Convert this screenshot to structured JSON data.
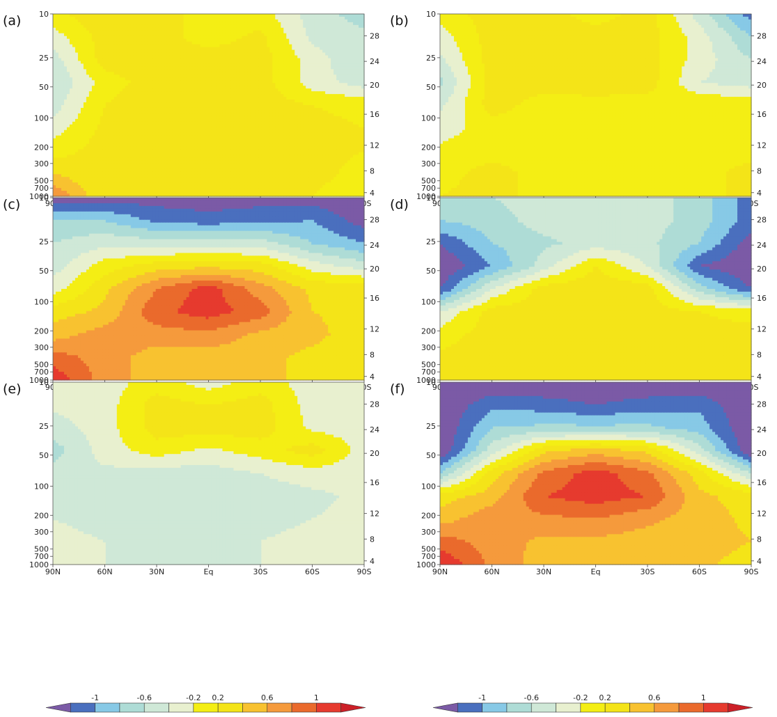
{
  "chart_data": {
    "type": "heatmap",
    "title": "",
    "x_ticks": [
      "90N",
      "60N",
      "30N",
      "Eq",
      "30S",
      "60S",
      "90S"
    ],
    "y_left_ticks": [
      "10",
      "25",
      "50",
      "100",
      "200",
      "300",
      "500",
      "700",
      "1000"
    ],
    "y_right_ticks": [
      "28",
      "24",
      "20",
      "16",
      "12",
      "8",
      "4"
    ],
    "colorbar_ticks": [
      "-1",
      "-0.6",
      "-0.2",
      "0.2",
      "0.6",
      "1"
    ],
    "levels": [
      -1.2,
      -1.0,
      -0.8,
      -0.6,
      -0.4,
      -0.2,
      0,
      0.2,
      0.4,
      0.6,
      0.8,
      1.0,
      1.2
    ],
    "colors": [
      "#7b5aa6",
      "#4a6fbe",
      "#87c9e6",
      "#aedcd6",
      "#cfe8d7",
      "#e8f0cf",
      "#f4ee14",
      "#f4e418",
      "#f8c230",
      "#f59a3c",
      "#ea6a2c",
      "#e63a2e",
      "#cc1f27"
    ],
    "panels": [
      {
        "label": "(a)",
        "grid": [
          [
            0.15,
            0.35,
            0.3,
            0.1,
            0.1,
            -0.3,
            -0.5
          ],
          [
            -0.1,
            0.3,
            0.3,
            0.1,
            0.25,
            -0.25,
            -0.35
          ],
          [
            -0.3,
            0.3,
            0.3,
            0.3,
            0.3,
            -0.1,
            -0.4
          ],
          [
            -0.4,
            0.1,
            0.3,
            0.3,
            0.3,
            -0.1,
            -0.3
          ],
          [
            -0.3,
            0.2,
            0.35,
            0.35,
            0.3,
            0.2,
            0.15
          ],
          [
            -0.1,
            0.25,
            0.35,
            0.35,
            0.3,
            0.25,
            0.2
          ],
          [
            0.1,
            0.3,
            0.3,
            0.3,
            0.3,
            0.25,
            0.2
          ],
          [
            0.4,
            0.2,
            0.25,
            0.3,
            0.3,
            0.25,
            0.15
          ],
          [
            0.8,
            0.2,
            0.25,
            0.3,
            0.3,
            0.2,
            0.1
          ]
        ]
      },
      {
        "label": "(b)",
        "grid": [
          [
            0.1,
            0.3,
            0.3,
            0.1,
            0.3,
            -0.3,
            -0.9
          ],
          [
            -0.1,
            0.3,
            0.3,
            0.3,
            0.3,
            -0.1,
            -0.6
          ],
          [
            -0.25,
            0.3,
            0.3,
            0.3,
            0.3,
            -0.1,
            -0.4
          ],
          [
            -0.45,
            0.3,
            0.3,
            0.35,
            0.3,
            -0.2,
            -0.3
          ],
          [
            -0.25,
            0.3,
            0.1,
            0.1,
            0.1,
            0.2,
            0.15
          ],
          [
            -0.1,
            0.1,
            0.1,
            0.1,
            0.1,
            0.1,
            0.1
          ],
          [
            0.05,
            0.1,
            0.1,
            0.1,
            0.1,
            0.1,
            0.1
          ],
          [
            0.1,
            0.3,
            0.1,
            0.1,
            0.1,
            0.1,
            0.3
          ],
          [
            0.2,
            0.3,
            0.1,
            0.1,
            0.1,
            0.1,
            0.3
          ]
        ]
      },
      {
        "label": "(c)",
        "grid": [
          [
            -1.1,
            -1.1,
            -1.1,
            -1.15,
            -1.1,
            -1.1,
            -1.2
          ],
          [
            -0.55,
            -0.6,
            -0.85,
            -0.9,
            -0.85,
            -0.8,
            -1.1
          ],
          [
            -0.4,
            -0.25,
            -0.3,
            -0.3,
            -0.3,
            -0.6,
            -0.8
          ],
          [
            -0.3,
            0.1,
            0.3,
            0.35,
            0.3,
            -0.1,
            -0.3
          ],
          [
            -0.1,
            0.35,
            0.8,
            1.1,
            0.7,
            0.35,
            0.35
          ],
          [
            0.3,
            0.45,
            0.95,
            1.1,
            0.9,
            0.4,
            0.35
          ],
          [
            0.5,
            0.7,
            0.7,
            0.75,
            0.55,
            0.45,
            0.3
          ],
          [
            0.9,
            0.7,
            0.5,
            0.5,
            0.45,
            0.35,
            0.3
          ],
          [
            1.15,
            0.7,
            0.5,
            0.5,
            0.45,
            0.35,
            0.3
          ]
        ]
      },
      {
        "label": "(d)",
        "grid": [
          [
            -0.6,
            -0.4,
            -0.3,
            -0.3,
            -0.3,
            -0.5,
            -0.9
          ],
          [
            -0.6,
            -0.5,
            -0.3,
            -0.3,
            -0.3,
            -0.5,
            -0.9
          ],
          [
            -1.0,
            -0.6,
            -0.45,
            -0.3,
            -0.35,
            -0.6,
            -1.1
          ],
          [
            -1.2,
            -0.8,
            -0.3,
            0.2,
            -0.2,
            -1.0,
            -1.2
          ],
          [
            -1.0,
            -0.2,
            0.3,
            0.35,
            0.3,
            -0.5,
            -1.0
          ],
          [
            -0.2,
            0.3,
            0.3,
            0.35,
            0.3,
            0.2,
            0.1
          ],
          [
            0.1,
            0.3,
            0.3,
            0.3,
            0.3,
            0.3,
            0.3
          ],
          [
            0.25,
            0.3,
            0.3,
            0.3,
            0.3,
            0.3,
            0.3
          ],
          [
            0.3,
            0.3,
            0.3,
            0.3,
            0.3,
            0.3,
            0.3
          ]
        ]
      },
      {
        "label": "(e)",
        "grid": [
          [
            -0.1,
            -0.1,
            0.1,
            -0.1,
            0.1,
            -0.1,
            -0.2
          ],
          [
            -0.15,
            -0.1,
            0.3,
            0.2,
            0.3,
            -0.1,
            -0.15
          ],
          [
            -0.3,
            -0.1,
            0.3,
            0.3,
            0.3,
            -0.05,
            -0.1
          ],
          [
            -0.5,
            -0.1,
            0.1,
            -0.05,
            0.1,
            0.3,
            -0.1
          ],
          [
            -0.3,
            -0.25,
            -0.3,
            -0.3,
            -0.2,
            -0.1,
            -0.1
          ],
          [
            -0.3,
            -0.3,
            -0.35,
            -0.35,
            -0.3,
            -0.25,
            -0.15
          ],
          [
            -0.2,
            -0.3,
            -0.3,
            -0.3,
            -0.25,
            -0.2,
            -0.15
          ],
          [
            -0.1,
            -0.2,
            -0.25,
            -0.25,
            -0.2,
            -0.15,
            -0.1
          ],
          [
            -0.1,
            -0.2,
            -0.25,
            -0.25,
            -0.2,
            -0.15,
            -0.1
          ]
        ]
      },
      {
        "label": "(f)",
        "grid": [
          [
            -1.2,
            -1.2,
            -1.2,
            -1.2,
            -1.2,
            -1.2,
            -1.2
          ],
          [
            -1.2,
            -0.85,
            -0.9,
            -1.0,
            -0.9,
            -0.85,
            -1.2
          ],
          [
            -1.2,
            -0.6,
            -0.55,
            -0.55,
            -0.55,
            -0.7,
            -1.2
          ],
          [
            -1.2,
            -0.3,
            0.35,
            0.5,
            0.35,
            -0.3,
            -1.2
          ],
          [
            -0.6,
            0.3,
            0.85,
            1.1,
            0.85,
            0.3,
            -0.4
          ],
          [
            0.3,
            0.5,
            1.0,
            1.1,
            1.0,
            0.45,
            0.3
          ],
          [
            0.5,
            0.75,
            0.75,
            0.8,
            0.65,
            0.5,
            0.35
          ],
          [
            0.9,
            0.7,
            0.55,
            0.55,
            0.5,
            0.5,
            0.4
          ],
          [
            1.2,
            0.75,
            0.5,
            0.5,
            0.5,
            0.45,
            0.3
          ]
        ]
      }
    ]
  }
}
